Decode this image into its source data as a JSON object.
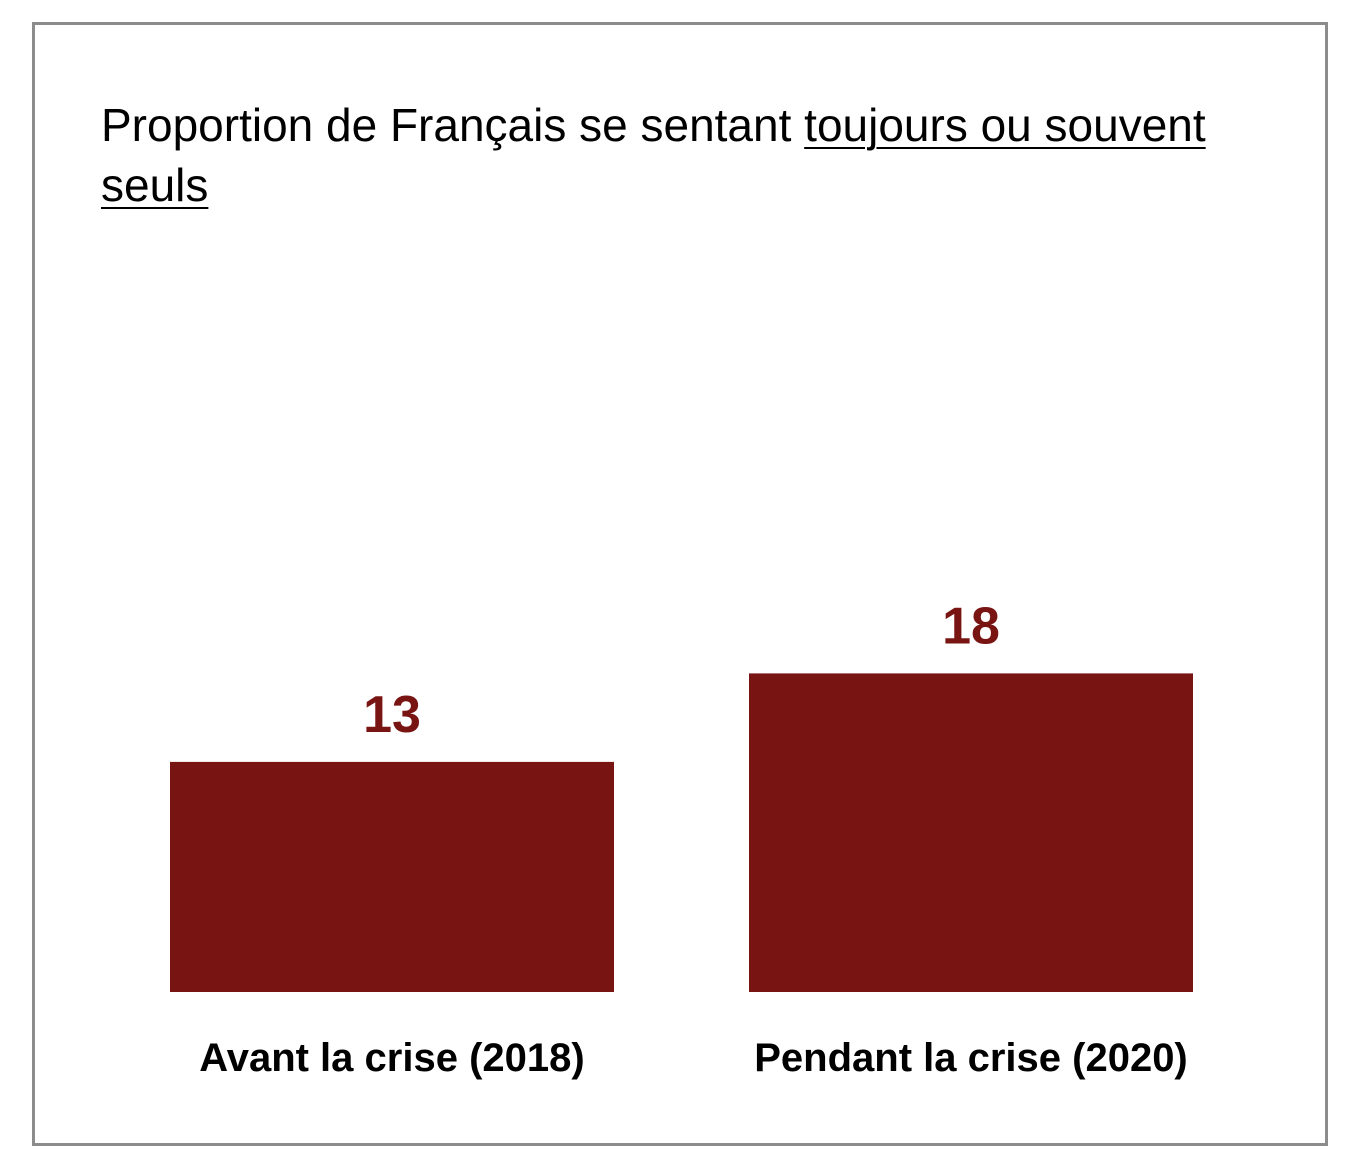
{
  "chart_data": {
    "type": "bar",
    "title_parts": [
      {
        "text": "Proportion de Français se sentant ",
        "underline": false
      },
      {
        "text": "toujours ou souvent seuls",
        "underline": true
      }
    ],
    "categories": [
      "Avant la crise (2018)",
      "Pendant la crise (2020)"
    ],
    "values": [
      13,
      18
    ],
    "value_labels": [
      "13",
      "18"
    ],
    "xlabel": "",
    "ylabel": "",
    "ylim": [
      0,
      50
    ],
    "grid": false,
    "legend": "none",
    "bar_color": "#781412",
    "value_label_color": "#781412"
  }
}
